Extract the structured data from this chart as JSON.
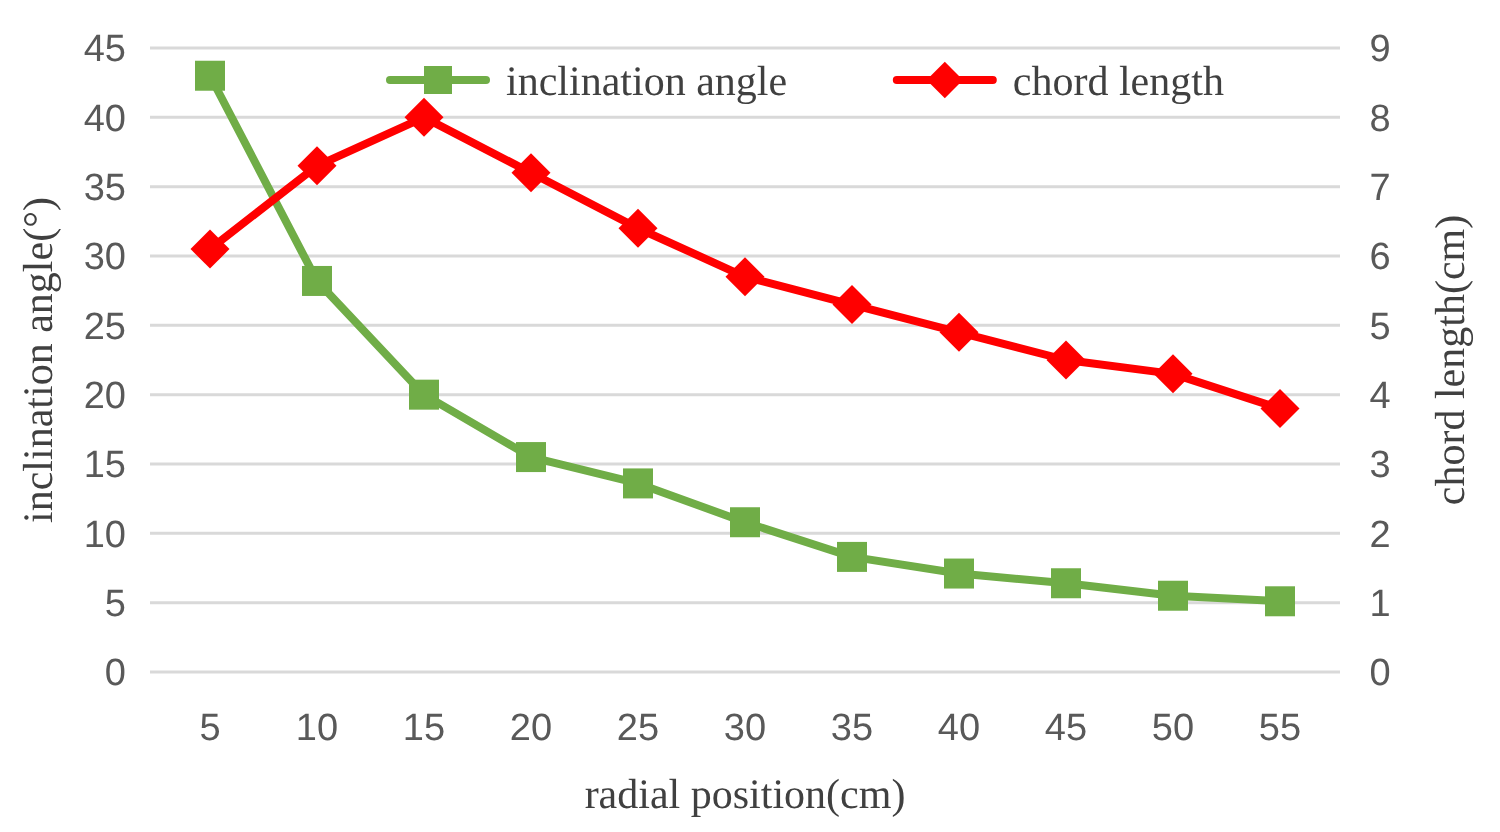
{
  "chart_data": {
    "type": "line",
    "xlabel": "radial position(cm)",
    "ylabel": "inclination angle(°)",
    "y2label": "chord length(cm)",
    "categories": [
      "5",
      "10",
      "15",
      "20",
      "25",
      "30",
      "35",
      "40",
      "45",
      "50",
      "55"
    ],
    "series": [
      {
        "name": "inclination angle",
        "color": "#70ad47",
        "marker": "square",
        "values": [
          43,
          28.2,
          20,
          15.5,
          13.6,
          10.8,
          8.3,
          7.1,
          6.4,
          5.5,
          5.1
        ]
      },
      {
        "name": "chord length",
        "color": "#ff0000",
        "marker": "diamond",
        "axis": "y2",
        "values": [
          6.1,
          7.3,
          8.0,
          7.2,
          6.4,
          5.7,
          5.3,
          4.9,
          4.5,
          4.3,
          3.8
        ]
      }
    ],
    "ylim": [
      0,
      45
    ],
    "yticks": [
      0,
      5,
      10,
      15,
      20,
      25,
      30,
      35,
      40,
      45
    ],
    "y2lim": [
      0,
      9
    ],
    "y2ticks": [
      0,
      1,
      2,
      3,
      4,
      5,
      6,
      7,
      8,
      9
    ],
    "grid": "y",
    "legend": "top"
  }
}
